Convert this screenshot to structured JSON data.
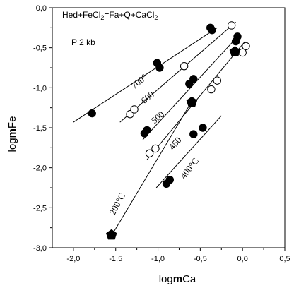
{
  "chart_data": {
    "type": "scatter",
    "title_parts": [
      "Hed+FeCl",
      "2",
      "=Fa+Q+CaCl",
      "2"
    ],
    "subtitle": "P 2 kb",
    "xlabel_parts": [
      "log",
      "m",
      "Ca"
    ],
    "ylabel_parts": [
      "log",
      "m",
      "Fe"
    ],
    "xlim": [
      -2.25,
      0.5
    ],
    "ylim": [
      -3.0,
      0.0
    ],
    "x_ticks": [
      -2.0,
      -1.5,
      -1.0,
      -0.5,
      0.0,
      0.5
    ],
    "x_tick_labels": [
      "-2,0",
      "-1,5",
      "-1,0",
      "-0,5",
      "0,0",
      "0,5"
    ],
    "y_ticks": [
      0.0,
      -0.5,
      -1.0,
      -1.5,
      -2.0,
      -2.5,
      -3.0
    ],
    "y_tick_labels": [
      "0,0",
      "-0,5",
      "-1,0",
      "-1,5",
      "-2,0",
      "-2,5",
      "-3,0"
    ],
    "isotherms": [
      {
        "label": "700°",
        "line": [
          [
            -2.0,
            -1.43
          ],
          [
            -0.3,
            -0.25
          ]
        ],
        "label_at": [
          -1.2,
          -0.95
        ],
        "angle": -40
      },
      {
        "label": "600",
        "line": [
          [
            -1.45,
            -1.43
          ],
          [
            -0.08,
            -0.18
          ]
        ],
        "label_at": [
          -1.1,
          -1.15
        ],
        "angle": -40
      },
      {
        "label": "500",
        "line": [
          [
            -1.18,
            -1.65
          ],
          [
            -0.05,
            -0.35
          ]
        ],
        "label_at": [
          -0.98,
          -1.4
        ],
        "angle": -40
      },
      {
        "label": "450",
        "line": [
          [
            -1.13,
            -1.9
          ],
          [
            0.03,
            -0.42
          ]
        ],
        "label_at": [
          -0.77,
          -1.72
        ],
        "angle": -50
      },
      {
        "label": "400°C",
        "line": [
          [
            -1.02,
            -2.25
          ],
          [
            -0.25,
            -1.35
          ]
        ],
        "label_at": [
          -0.6,
          -2.03
        ],
        "angle": -52
      },
      {
        "label": "200°C",
        "line": [
          [
            -1.55,
            -2.85
          ],
          [
            -0.6,
            -1.17
          ]
        ],
        "label_at": [
          -1.45,
          -2.47
        ],
        "angle": -62
      }
    ],
    "series": [
      {
        "marker": "filled-circle",
        "points": [
          [
            -1.78,
            -1.32
          ],
          [
            -1.01,
            -0.69
          ],
          [
            -0.98,
            -0.75
          ],
          [
            -0.38,
            -0.25
          ],
          [
            -0.36,
            -0.28
          ],
          [
            -0.06,
            -0.36
          ],
          [
            -0.08,
            -0.42
          ],
          [
            -1.16,
            -1.57
          ],
          [
            -1.13,
            -1.53
          ],
          [
            -0.63,
            -0.95
          ],
          [
            -0.58,
            -0.89
          ],
          [
            -0.58,
            -1.58
          ],
          [
            -0.47,
            -1.5
          ],
          [
            -0.9,
            -2.2
          ],
          [
            -0.86,
            -2.15
          ]
        ]
      },
      {
        "marker": "open-circle",
        "points": [
          [
            -1.33,
            -1.33
          ],
          [
            -1.28,
            -1.27
          ],
          [
            -0.69,
            -0.73
          ],
          [
            -0.13,
            -0.22
          ],
          [
            -1.1,
            -1.82
          ],
          [
            -1.03,
            -1.76
          ],
          [
            -0.37,
            -1.02
          ],
          [
            -0.3,
            -0.91
          ],
          [
            0.0,
            -0.56
          ],
          [
            0.04,
            -0.48
          ]
        ]
      },
      {
        "marker": "filled-pentagon",
        "points": [
          [
            -1.55,
            -2.84
          ],
          [
            -0.6,
            -1.18
          ],
          [
            -0.09,
            -0.55
          ]
        ]
      }
    ]
  }
}
